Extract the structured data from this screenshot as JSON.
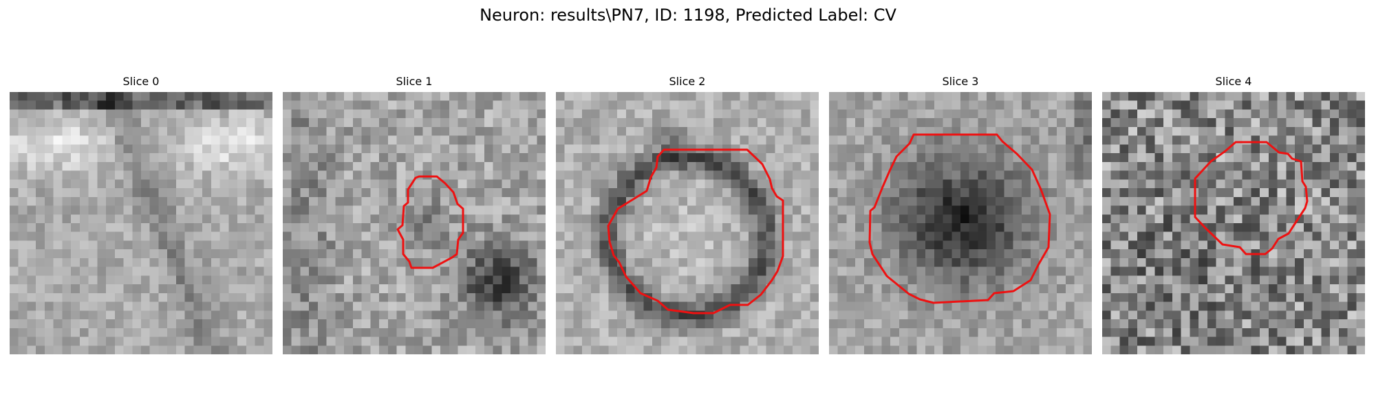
{
  "figure": {
    "title": "Neuron: results\\PN7, ID: 1198, Predicted Label: CV"
  },
  "panels": [
    {
      "title": "Slice 0",
      "has_contour": false,
      "image": "grayscale-microscopy-slice-0",
      "tone": "light-membrane-band"
    },
    {
      "title": "Slice 1",
      "has_contour": true,
      "image": "grayscale-microscopy-slice-1",
      "tone": "noisy-with-dark-lower-right"
    },
    {
      "title": "Slice 2",
      "has_contour": true,
      "image": "grayscale-microscopy-slice-2",
      "tone": "dark-ring-around-light-body"
    },
    {
      "title": "Slice 3",
      "has_contour": true,
      "image": "grayscale-microscopy-slice-3",
      "tone": "dark-vesicle-center"
    },
    {
      "title": "Slice 4",
      "has_contour": true,
      "image": "grayscale-microscopy-slice-4",
      "tone": "high-noise"
    }
  ],
  "style": {
    "contour_color": "#ee1111",
    "colormap": "gray"
  }
}
